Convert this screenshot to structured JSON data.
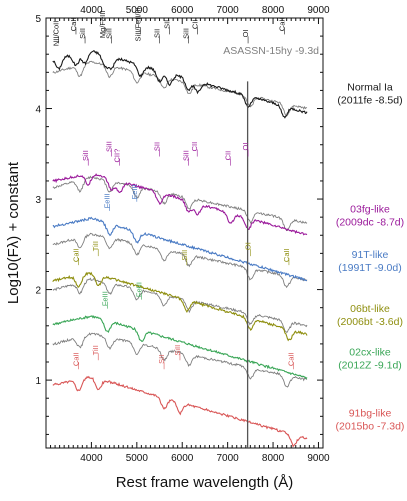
{
  "chart_data": {
    "type": "line",
    "xlabel": "Rest frame wavelength (Å)",
    "ylabel": "Log10(Fλ) + constant",
    "xlim": [
      3000,
      9100
    ],
    "ylim": [
      0.25,
      5.0
    ],
    "xticks_top": [
      4000,
      5000,
      6000,
      7000,
      8000,
      9000
    ],
    "xticks_bottom": [
      4000,
      5000,
      6000,
      7000,
      8000,
      9000
    ],
    "yticks": [
      1,
      2,
      3,
      4,
      5
    ],
    "vline": 7440,
    "reference_spectrum": {
      "name": "ASASSN-15hy -9.3d",
      "color": "#7f7f7f",
      "offsets": [
        4.45,
        3.18,
        2.55,
        2.05,
        1.45
      ]
    },
    "comparison_spectra": [
      {
        "name": "Normal Ia (2011fe -8.5d)",
        "line1": "Normal Ia",
        "line2": "(2011fe -8.5d)",
        "color": "#1a1a1a",
        "offset": 4.55,
        "features": [
          {
            "label": "NII/CoII",
            "x": 3280
          },
          {
            "label": "CaII",
            "x": 3660
          },
          {
            "label": "SiII",
            "x": 3860
          },
          {
            "label": "Mg/FeIII",
            "x": 4300
          },
          {
            "label": "SiII",
            "x": 4440
          },
          {
            "label": "SiII/FeII/III",
            "x": 5080
          },
          {
            "label": "SII",
            "x": 5500
          },
          {
            "label": "SII",
            "x": 5720
          },
          {
            "label": "SiII",
            "x": 6140
          },
          {
            "label": "CII",
            "x": 6340
          },
          {
            "label": "OI",
            "x": 7450
          },
          {
            "label": "CaII",
            "x": 8250
          }
        ]
      },
      {
        "name": "03fg-like (2009dc -8.7d)",
        "line1": "03fg-like",
        "line2": "(2009dc -8.7d)",
        "color": "#9b1b9b",
        "offset": 3.2,
        "features": [
          {
            "label": "SiII",
            "x": 3930
          },
          {
            "label": "SiII",
            "x": 4440
          },
          {
            "label": "CII?",
            "x": 4620
          },
          {
            "label": "SII",
            "x": 5500
          },
          {
            "label": "SiII",
            "x": 6140
          },
          {
            "label": "CII",
            "x": 6330
          },
          {
            "label": "CII",
            "x": 7060
          },
          {
            "label": "OI",
            "x": 7450
          }
        ]
      },
      {
        "name": "91T-like (1991T -9.0d)",
        "line1": "91T-like",
        "line2": "(1991T -9.0d)",
        "color": "#4a7bc4",
        "offset": 2.7,
        "features": [
          {
            "label": "FeIII",
            "x": 4400
          },
          {
            "label": "FeIII",
            "x": 5000
          }
        ]
      },
      {
        "name": "06bt-like (2006bt -3.6d)",
        "line1": "06bt-like",
        "line2": "(2006bt -3.6d)",
        "color": "#8f8f10",
        "offset": 2.1,
        "features": [
          {
            "label": "CaII",
            "x": 3720
          },
          {
            "label": "TiII",
            "x": 4150
          },
          {
            "label": "SiII",
            "x": 6100
          },
          {
            "label": "OI",
            "x": 7500
          },
          {
            "label": "CaII",
            "x": 8350
          }
        ]
      },
      {
        "name": "02cx-like (2012Z -9.1d)",
        "line1": "02cx-like",
        "line2": "(2012Z -9.1d)",
        "color": "#3aa657",
        "offset": 1.62,
        "features": [
          {
            "label": "FeIII",
            "x": 4350
          },
          {
            "label": "FeIII",
            "x": 5100
          }
        ]
      },
      {
        "name": "91bg-like (2015bo -7.3d)",
        "line1": "91bg-like",
        "line2": "(2015bo -7.3d)",
        "color": "#d95757",
        "offset": 0.95,
        "features": [
          {
            "label": "CaII",
            "x": 3720
          },
          {
            "label": "TiII",
            "x": 4150
          },
          {
            "label": "SII",
            "x": 5600
          },
          {
            "label": "SiII",
            "x": 5950
          },
          {
            "label": "CaII",
            "x": 8450
          }
        ]
      }
    ]
  }
}
